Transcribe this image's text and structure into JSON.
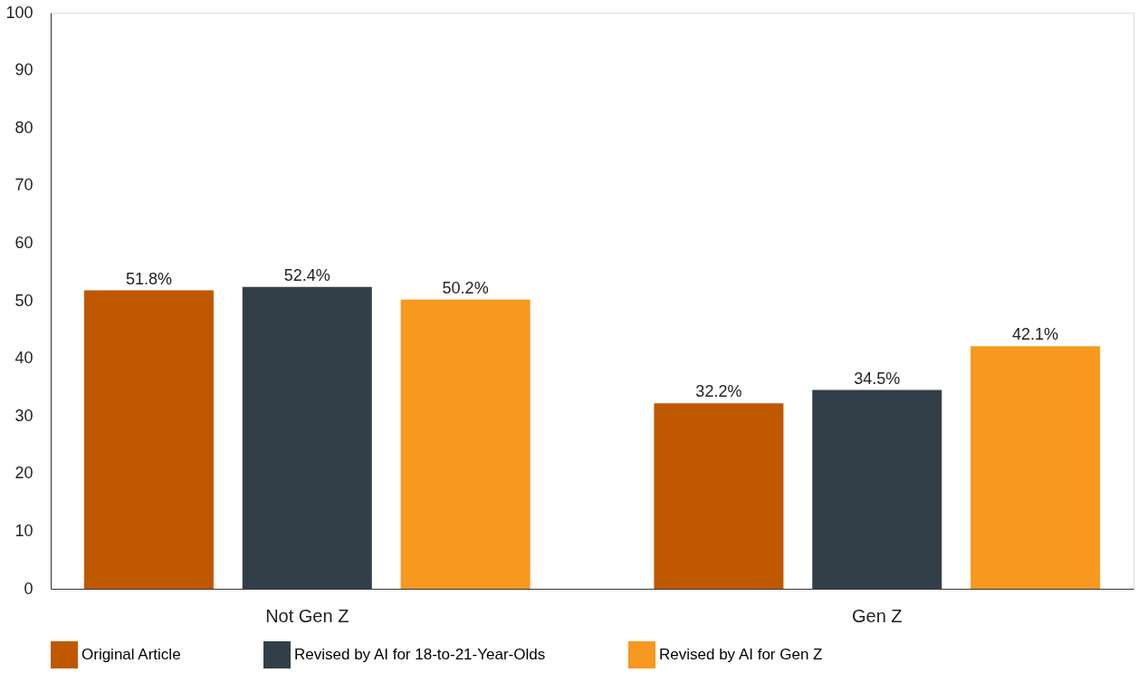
{
  "chart_data": {
    "type": "bar",
    "categories": [
      "Not Gen Z",
      "Gen Z"
    ],
    "series": [
      {
        "name": "Original Article",
        "color": "#c05800",
        "values": [
          51.8,
          32.2
        ],
        "value_labels": [
          "51.8%",
          "32.2%"
        ]
      },
      {
        "name": "Revised by AI for 18-to-21-Year-Olds",
        "color": "#333f48",
        "values": [
          52.4,
          34.5
        ],
        "value_labels": [
          "52.4%",
          "34.5%"
        ]
      },
      {
        "name": "Revised by AI for Gen Z",
        "color": "#f7981f",
        "values": [
          50.2,
          42.1
        ],
        "value_labels": [
          "50.2%",
          "42.1%"
        ]
      }
    ],
    "ylim": [
      0,
      100
    ],
    "yticks": [
      0,
      10,
      20,
      30,
      40,
      50,
      60,
      70,
      80,
      90,
      100
    ],
    "grid": false,
    "legend": "bottom"
  }
}
